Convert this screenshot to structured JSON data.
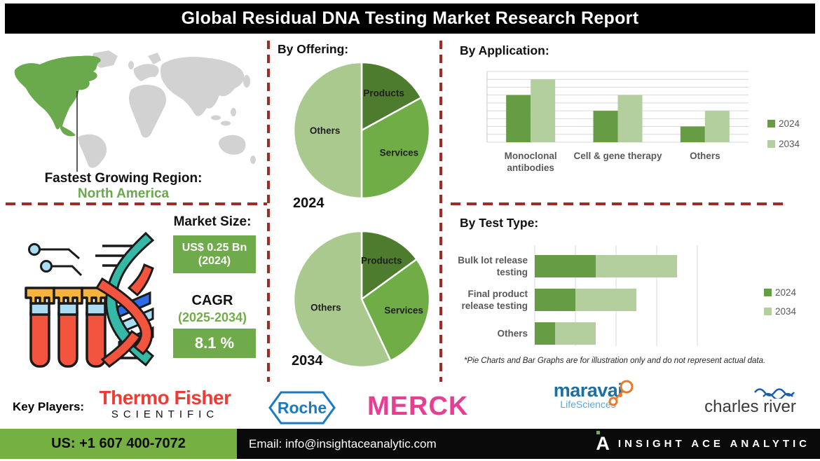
{
  "title": "Global Residual DNA Testing Market Research Report",
  "region": {
    "label": "Fastest Growing Region:",
    "value": "North America"
  },
  "market": {
    "size_label": "Market Size:",
    "size_value": "US$ 0.25 Bn",
    "size_year": "(2024)",
    "cagr_label": "CAGR",
    "cagr_period": "(2025-2034)",
    "cagr_value": "8.1 %"
  },
  "sections": {
    "offering": "By Offering:",
    "application": "By  Application:",
    "test_type": "By Test Type:"
  },
  "footnote": "*Pie Charts and Bar Graphs are for illustration only and do not represent actual data.",
  "key_players": {
    "label": "Key Players:",
    "players": [
      "Thermo Fisher Scientific",
      "Roche",
      "Merck",
      "Maravai LifeSciences",
      "Charles River"
    ]
  },
  "logos": {
    "thermo_line1": "Thermo Fisher",
    "thermo_line2": "SCIENTIFIC",
    "roche": "Roche",
    "merck": "MERCK",
    "maravai_line1": "maravai",
    "maravai_line2": "LifeSciences",
    "charles": "charles river"
  },
  "footer": {
    "phone": "US: +1 607 400-7072",
    "email": "Email: info@insightaceanalytic.com",
    "brand": "INSIGHT ACE ANALYTIC"
  },
  "colors": {
    "pie_products": "#4e7c2f",
    "pie_services": "#70ad47",
    "pie_others": "#a9c98e",
    "bar_2024": "#669c44",
    "bar_2034": "#b4cf9e",
    "dashed_red": "#9f2d26",
    "accent_green": "#6faa4b",
    "footer_green": "#75b042",
    "map_highlight": "#6aaa4c",
    "map_gray": "#d2d2d2"
  },
  "chart_data": [
    {
      "type": "pie",
      "year": "2024",
      "title": "By Offering: 2024",
      "labels": [
        "Products",
        "Services",
        "Others"
      ],
      "values": [
        17,
        33,
        50
      ],
      "colors": [
        "#4e7c2f",
        "#70ad47",
        "#a9c98e"
      ],
      "note": "illustrative only"
    },
    {
      "type": "pie",
      "year": "2034",
      "title": "By Offering: 2034",
      "labels": [
        "Products",
        "Services",
        "Others"
      ],
      "values": [
        15,
        28,
        57
      ],
      "colors": [
        "#4e7c2f",
        "#70ad47",
        "#a9c98e"
      ],
      "note": "illustrative only"
    },
    {
      "type": "bar",
      "title": "By Application:",
      "categories": [
        [
          "Monoclonal",
          "antibodies"
        ],
        [
          "Cell & gene therapy"
        ],
        [
          "Others"
        ]
      ],
      "series": [
        {
          "name": "2024",
          "color": "#669c44",
          "values": [
            6,
            4,
            2
          ]
        },
        {
          "name": "2034",
          "color": "#b4cf9e",
          "values": [
            8,
            6,
            4
          ]
        }
      ],
      "ylim": [
        0,
        9
      ],
      "grid": true,
      "legend_position": "right",
      "note": "illustrative only"
    },
    {
      "type": "stacked-hbar",
      "title": "By Test Type:",
      "categories": [
        [
          "Bulk lot release",
          "testing"
        ],
        [
          "Final product",
          "release testing"
        ],
        [
          "Others"
        ]
      ],
      "series": [
        {
          "name": "2024",
          "color": "#669c44",
          "values": [
            1.5,
            1,
            0.5
          ]
        },
        {
          "name": "2034",
          "color": "#b4cf9e",
          "values": [
            2,
            1.5,
            1
          ]
        }
      ],
      "xlim": [
        0,
        4
      ],
      "grid": true,
      "legend_position": "right",
      "note": "illustrative only"
    }
  ]
}
